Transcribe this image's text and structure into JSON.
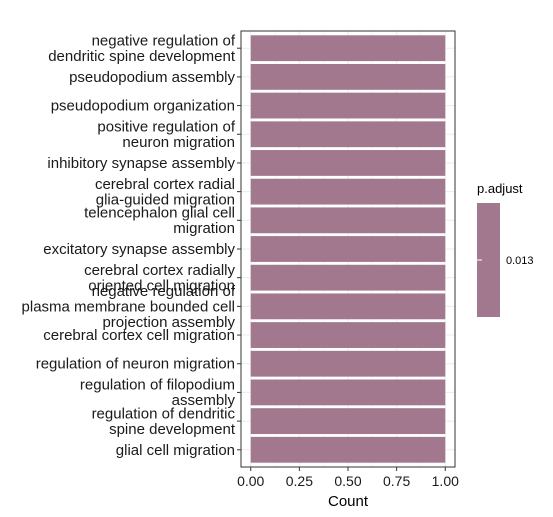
{
  "chart_data": {
    "type": "bar",
    "orientation": "horizontal",
    "categories": [
      "negative regulation of\ndendritic spine development",
      "pseudopodium assembly",
      "pseudopodium organization",
      "positive regulation of\nneuron migration",
      "inhibitory synapse assembly",
      "cerebral cortex radial\nglia-guided migration",
      "telencephalon glial cell\nmigration",
      "excitatory synapse assembly",
      "cerebral cortex radially\noriented cell migration",
      "negative regulation of\nplasma membrane bounded cell\nprojection assembly",
      "cerebral cortex cell migration",
      "regulation of neuron migration",
      "regulation of filopodium\nassembly",
      "regulation of dendritic\nspine development",
      "glial cell migration"
    ],
    "values": [
      1,
      1,
      1,
      1,
      1,
      1,
      1,
      1,
      1,
      1,
      1,
      1,
      1,
      1,
      1
    ],
    "xlabel": "Count",
    "ylabel": "",
    "xlim": [
      0,
      1
    ],
    "xticks": [
      "0.00",
      "0.25",
      "0.50",
      "0.75",
      "1.00"
    ],
    "bar_color": "#a2788f",
    "grid": true,
    "legend": {
      "title": "p.adjust",
      "position": "right",
      "color": "#a2788f",
      "tick_label": "0.013"
    }
  }
}
